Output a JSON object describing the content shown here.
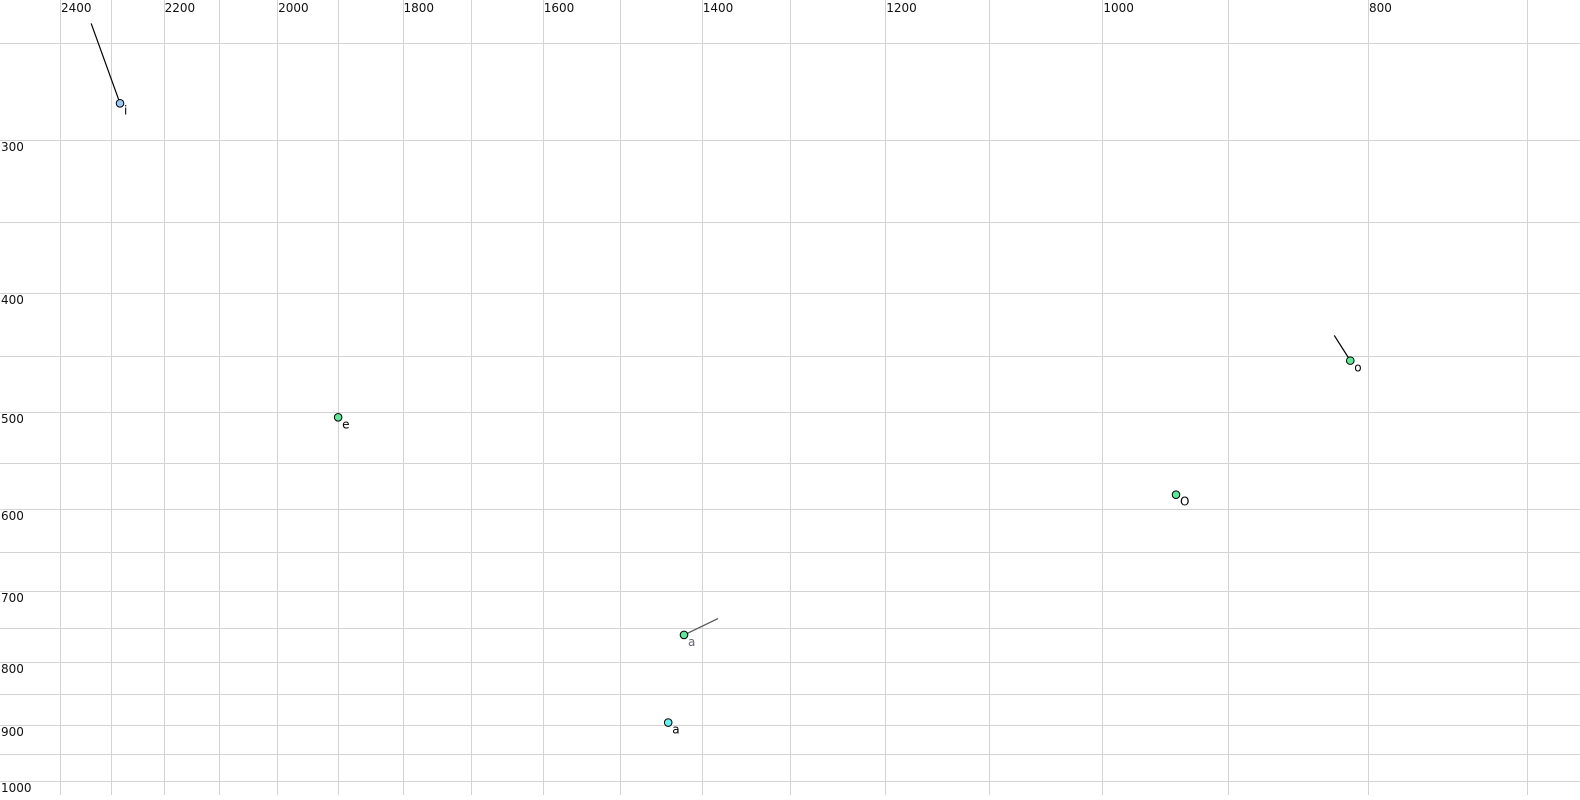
{
  "chart_data": {
    "type": "scatter",
    "title": "",
    "xlabel": "",
    "ylabel": "",
    "x_scale": "log",
    "y_scale": "log",
    "x_reversed": true,
    "xlim": [
      2400,
      700
    ],
    "ylim": [
      250,
      1000
    ],
    "grid": true,
    "x_gridlines": [
      2400,
      2300,
      2200,
      2100,
      2000,
      1900,
      1800,
      1700,
      1600,
      1500,
      1400,
      1300,
      1200,
      1100,
      1000,
      900,
      800,
      700
    ],
    "y_gridlines": [
      250,
      300,
      350,
      400,
      450,
      500,
      550,
      600,
      650,
      700,
      750,
      800,
      850,
      900,
      950,
      1000
    ],
    "x_tick_labels": [
      "2400",
      "2200",
      "2000",
      "1800",
      "1600",
      "1400",
      "1200",
      "1000",
      "800"
    ],
    "y_tick_labels": [
      "300",
      "400",
      "500",
      "600",
      "700",
      "800",
      "900",
      "1000"
    ],
    "points": [
      {
        "label": "i",
        "x": 2282,
        "y": 280,
        "color": "#9cc8f5",
        "label_color": "#000000",
        "trail": [
          [
            2338,
            241
          ]
        ],
        "trail_color": "#000000"
      },
      {
        "label": "e",
        "x": 1900,
        "y": 505,
        "color": "#5fe89a",
        "label_color": "#000000",
        "trail": [],
        "trail_color": "#000000"
      },
      {
        "label": "o",
        "x": 812,
        "y": 454,
        "color": "#5fe89a",
        "label_color": "#000000",
        "trail": [
          [
            823,
            433
          ]
        ],
        "trail_color": "#000000"
      },
      {
        "label": "O",
        "x": 940,
        "y": 584,
        "color": "#5fe89a",
        "label_color": "#000000",
        "trail": [],
        "trail_color": "#000000"
      },
      {
        "label": "a",
        "x": 1421,
        "y": 760,
        "color": "#5fe89a",
        "label_color": "#666677",
        "trail": [
          [
            1381,
            737
          ]
        ],
        "trail_color": "#555555"
      },
      {
        "label": "a",
        "x": 1440,
        "y": 896,
        "color": "#66eef0",
        "label_color": "#000000",
        "trail": [],
        "trail_color": "#000000"
      }
    ]
  }
}
